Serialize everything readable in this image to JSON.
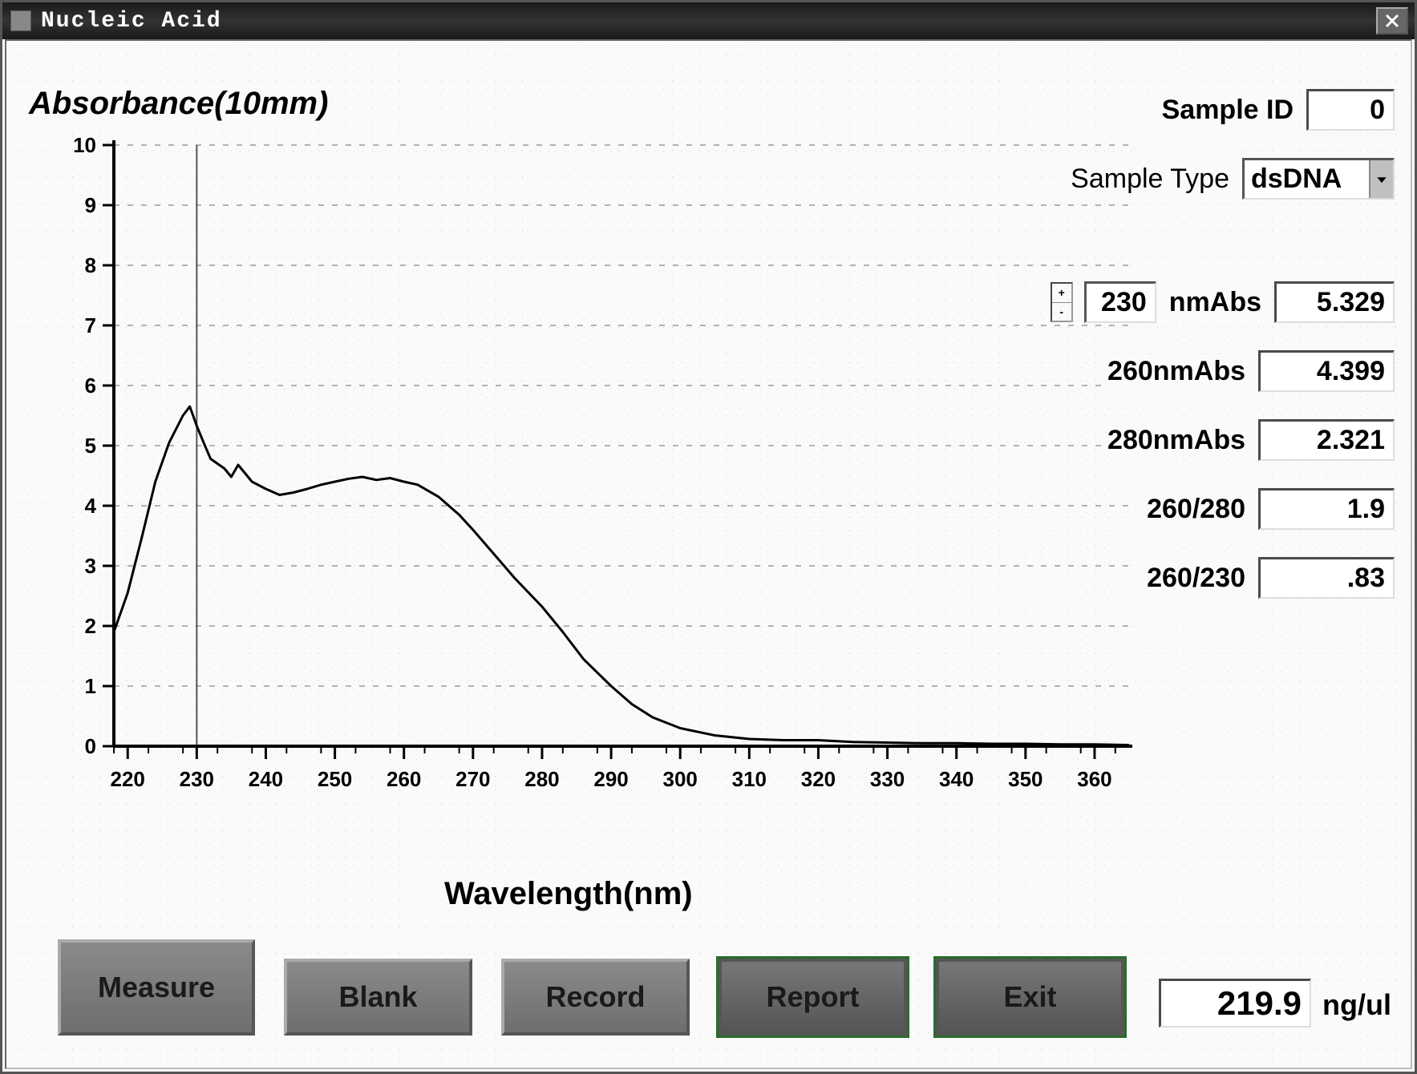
{
  "window": {
    "title": "Nucleic Acid"
  },
  "chart": {
    "type": "line",
    "title": "Absorbance(10mm)",
    "xaxis_title": "Wavelength(nm)",
    "xlim": [
      218,
      365
    ],
    "ylim": [
      0,
      10
    ],
    "xticks": [
      220,
      230,
      240,
      250,
      260,
      270,
      280,
      290,
      300,
      310,
      320,
      330,
      340,
      350,
      360
    ],
    "yticks": [
      0,
      1,
      2,
      3,
      4,
      5,
      6,
      7,
      8,
      9,
      10
    ],
    "cursor_x": 230,
    "axis_color": "#000000",
    "axis_width": 4,
    "grid_color": "#9a9a9a",
    "grid_dash": "7 10",
    "line_color": "#000000",
    "line_width": 3,
    "cursor_color": "#555555",
    "cursor_width": 2,
    "background_color": "#fafafa",
    "tick_fontsize": 26,
    "title_fontsize": 40,
    "series": [
      {
        "x": 218,
        "y": 1.9
      },
      {
        "x": 220,
        "y": 2.55
      },
      {
        "x": 222,
        "y": 3.45
      },
      {
        "x": 224,
        "y": 4.4
      },
      {
        "x": 226,
        "y": 5.05
      },
      {
        "x": 228,
        "y": 5.5
      },
      {
        "x": 229,
        "y": 5.65
      },
      {
        "x": 230,
        "y": 5.33
      },
      {
        "x": 231,
        "y": 5.05
      },
      {
        "x": 232,
        "y": 4.78
      },
      {
        "x": 234,
        "y": 4.62
      },
      {
        "x": 235,
        "y": 4.48
      },
      {
        "x": 236,
        "y": 4.68
      },
      {
        "x": 238,
        "y": 4.4
      },
      {
        "x": 240,
        "y": 4.28
      },
      {
        "x": 242,
        "y": 4.18
      },
      {
        "x": 244,
        "y": 4.22
      },
      {
        "x": 246,
        "y": 4.28
      },
      {
        "x": 248,
        "y": 4.35
      },
      {
        "x": 250,
        "y": 4.4
      },
      {
        "x": 252,
        "y": 4.45
      },
      {
        "x": 254,
        "y": 4.48
      },
      {
        "x": 256,
        "y": 4.43
      },
      {
        "x": 258,
        "y": 4.46
      },
      {
        "x": 260,
        "y": 4.4
      },
      {
        "x": 262,
        "y": 4.35
      },
      {
        "x": 265,
        "y": 4.15
      },
      {
        "x": 268,
        "y": 3.85
      },
      {
        "x": 270,
        "y": 3.6
      },
      {
        "x": 273,
        "y": 3.2
      },
      {
        "x": 276,
        "y": 2.8
      },
      {
        "x": 280,
        "y": 2.32
      },
      {
        "x": 283,
        "y": 1.9
      },
      {
        "x": 286,
        "y": 1.45
      },
      {
        "x": 290,
        "y": 1.0
      },
      {
        "x": 293,
        "y": 0.7
      },
      {
        "x": 296,
        "y": 0.48
      },
      {
        "x": 300,
        "y": 0.3
      },
      {
        "x": 305,
        "y": 0.18
      },
      {
        "x": 310,
        "y": 0.12
      },
      {
        "x": 315,
        "y": 0.1
      },
      {
        "x": 320,
        "y": 0.1
      },
      {
        "x": 325,
        "y": 0.07
      },
      {
        "x": 330,
        "y": 0.06
      },
      {
        "x": 335,
        "y": 0.05
      },
      {
        "x": 340,
        "y": 0.05
      },
      {
        "x": 345,
        "y": 0.04
      },
      {
        "x": 350,
        "y": 0.04
      },
      {
        "x": 355,
        "y": 0.03
      },
      {
        "x": 360,
        "y": 0.03
      },
      {
        "x": 365,
        "y": 0.02
      }
    ]
  },
  "fields": {
    "sample_id": {
      "label": "Sample ID",
      "value": "0"
    },
    "sample_type": {
      "label": "Sample Type",
      "value": "dsDNA"
    },
    "cursor_nm": {
      "nm_value": "230",
      "nm_suffix": "nmAbs",
      "abs_value": "5.329"
    },
    "a260": {
      "label": "260nmAbs",
      "value": "4.399"
    },
    "a280": {
      "label": "280nmAbs",
      "value": "2.321"
    },
    "r260_280": {
      "label": "260/280",
      "value": "1.9"
    },
    "r260_230": {
      "label": "260/230",
      "value": ".83"
    },
    "concentration": {
      "value": "219.9",
      "unit": "ng/ul"
    }
  },
  "buttons": {
    "measure": "Measure",
    "blank": "Blank",
    "record": "Record",
    "report": "Report",
    "exit": "Exit"
  }
}
